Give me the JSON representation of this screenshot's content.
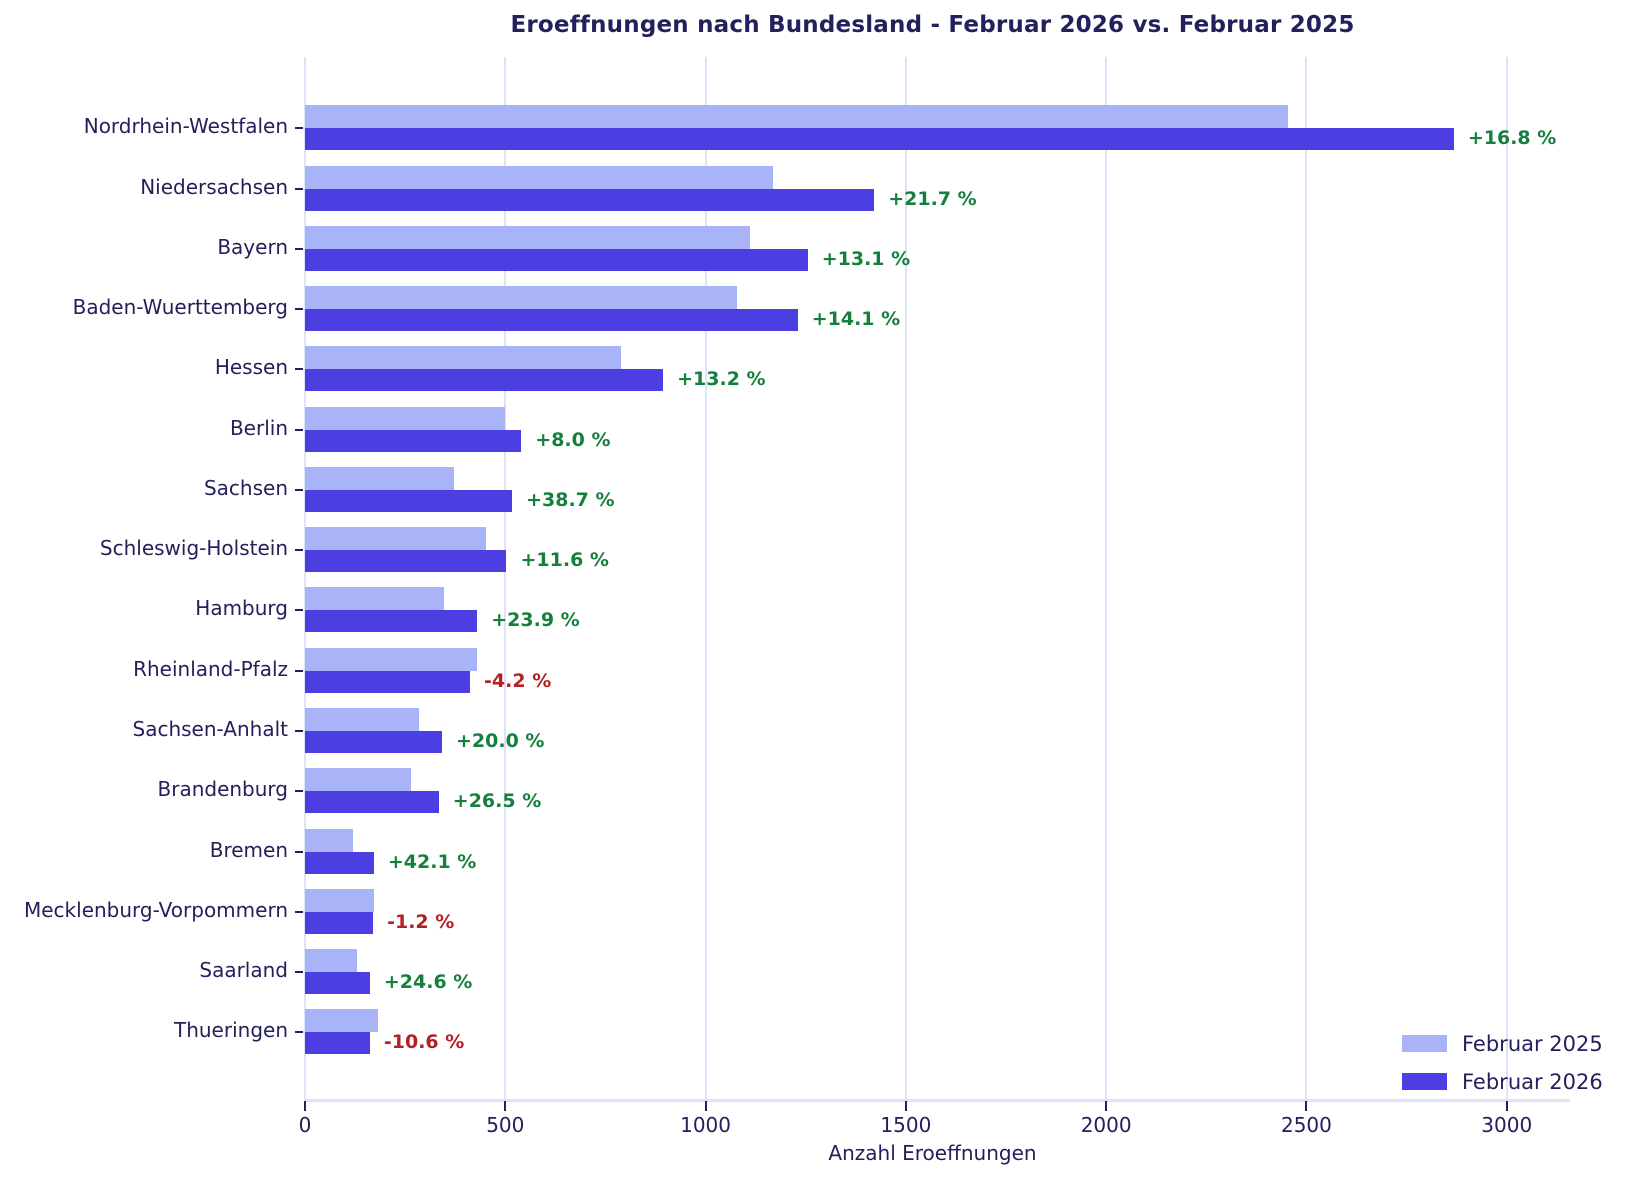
{
  "title": "Eroeffnungen nach Bundesland - Februar 2026 vs. Februar 2025",
  "xlabel": "Anzahl Eroeffnungen",
  "legend": {
    "position": "lower right",
    "items": [
      {
        "label": "Februar 2025",
        "color": "#a8b3f8"
      },
      {
        "label": "Februar 2026",
        "color": "#4c3fe1"
      }
    ]
  },
  "colors": {
    "bar_2025": "#a8b3f8",
    "bar_2026": "#4c3fe1",
    "text": "#23215b",
    "positive_pct": "#157f3d",
    "negative_pct": "#b42025",
    "gridline": "#dfe3f7",
    "background": "#ffffff"
  },
  "chart_data": {
    "type": "bar",
    "orientation": "horizontal",
    "title": "Eroeffnungen nach Bundesland - Februar 2026 vs. Februar 2025",
    "xlabel": "Anzahl Eroeffnungen",
    "ylabel": "",
    "grid": true,
    "xlim": [
      0,
      3133
    ],
    "xticks": [
      0,
      500,
      1000,
      1500,
      2000,
      2500,
      3000
    ],
    "categories": [
      "Nordrhein-Westfalen",
      "Niedersachsen",
      "Bayern",
      "Baden-Wuerttemberg",
      "Hessen",
      "Berlin",
      "Sachsen",
      "Schleswig-Holstein",
      "Hamburg",
      "Rheinland-Pfalz",
      "Sachsen-Anhalt",
      "Brandenburg",
      "Bremen",
      "Mecklenburg-Vorpommern",
      "Saarland",
      "Thueringen"
    ],
    "series": [
      {
        "name": "Februar 2025",
        "values": [
          2455,
          1168,
          1110,
          1078,
          790,
          500,
          373,
          451,
          347,
          430,
          285,
          264,
          121,
          172,
          130,
          181
        ]
      },
      {
        "name": "Februar 2026",
        "values": [
          2868,
          1421,
          1255,
          1230,
          894,
          540,
          517,
          503,
          430,
          412,
          342,
          334,
          172,
          170,
          162,
          162
        ]
      }
    ],
    "pct_change_labels": [
      "+16.8 %",
      "+21.7 %",
      "+13.1 %",
      "+14.1 %",
      "+13.2 %",
      "+8.0 %",
      "+38.7 %",
      "+11.6 %",
      "+23.9 %",
      "-4.2 %",
      "+20.0 %",
      "+26.5 %",
      "+42.1 %",
      "-1.2 %",
      "+24.6 %",
      "-10.6 %"
    ],
    "legend_position": "lower right"
  }
}
